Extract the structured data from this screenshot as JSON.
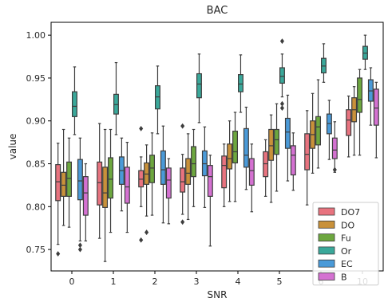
{
  "chart_data": {
    "type": "box",
    "title": "BAC",
    "xlabel": "SNR",
    "ylabel": "value",
    "ylim": [
      0.725,
      1.015
    ],
    "yticks": [
      "0.75",
      "0.80",
      "0.85",
      "0.90",
      "0.95",
      "1.00"
    ],
    "grid": false,
    "legend_position": "lower-right",
    "categories": [
      "0",
      "1",
      "2",
      "3",
      "4",
      "5",
      "6",
      "10"
    ],
    "series": [
      {
        "name": "DO7",
        "color": "#e8737f",
        "boxes": [
          {
            "q1": 0.807,
            "median": 0.829,
            "q3": 0.849,
            "whisker_low": 0.756,
            "whisker_high": 0.874,
            "outliers": [
              0.745
            ]
          },
          {
            "q1": 0.802,
            "median": 0.828,
            "q3": 0.852,
            "whisker_low": 0.763,
            "whisker_high": 0.897,
            "outliers": []
          },
          {
            "q1": 0.823,
            "median": 0.832,
            "q3": 0.842,
            "whisker_low": 0.8,
            "whisker_high": 0.858,
            "outliers": [
              0.891,
              0.761
            ]
          },
          {
            "q1": 0.817,
            "median": 0.829,
            "q3": 0.845,
            "whisker_low": 0.791,
            "whisker_high": 0.861,
            "outliers": [
              0.894,
              0.782
            ]
          },
          {
            "q1": 0.822,
            "median": 0.848,
            "q3": 0.859,
            "whisker_low": 0.8,
            "whisker_high": 0.873,
            "outliers": []
          },
          {
            "q1": 0.835,
            "median": 0.85,
            "q3": 0.864,
            "whisker_low": 0.812,
            "whisker_high": 0.878,
            "outliers": []
          },
          {
            "q1": 0.843,
            "median": 0.861,
            "q3": 0.885,
            "whisker_low": 0.802,
            "whisker_high": 0.912,
            "outliers": []
          },
          {
            "q1": 0.883,
            "median": 0.901,
            "q3": 0.913,
            "whisker_low": 0.858,
            "whisker_high": 0.929,
            "outliers": []
          }
        ]
      },
      {
        "name": "DO",
        "color": "#c9913a",
        "boxes": [
          {
            "q1": 0.812,
            "median": 0.825,
            "q3": 0.84,
            "whisker_low": 0.778,
            "whisker_high": 0.89,
            "outliers": []
          },
          {
            "q1": 0.799,
            "median": 0.816,
            "q3": 0.846,
            "whisker_low": 0.736,
            "whisker_high": 0.89,
            "outliers": []
          },
          {
            "q1": 0.826,
            "median": 0.838,
            "q3": 0.851,
            "whisker_low": 0.789,
            "whisker_high": 0.872,
            "outliers": [
              0.77
            ]
          },
          {
            "q1": 0.826,
            "median": 0.839,
            "q3": 0.856,
            "whisker_low": 0.785,
            "whisker_high": 0.885,
            "outliers": []
          },
          {
            "q1": 0.844,
            "median": 0.856,
            "q3": 0.873,
            "whisker_low": 0.806,
            "whisker_high": 0.9,
            "outliers": []
          },
          {
            "q1": 0.854,
            "median": 0.871,
            "q3": 0.89,
            "whisker_low": 0.805,
            "whisker_high": 0.907,
            "outliers": []
          },
          {
            "q1": 0.868,
            "median": 0.884,
            "q3": 0.9,
            "whisker_low": 0.839,
            "whisker_high": 0.932,
            "outliers": []
          },
          {
            "q1": 0.899,
            "median": 0.913,
            "q3": 0.927,
            "whisker_low": 0.86,
            "whisker_high": 0.94,
            "outliers": []
          }
        ]
      },
      {
        "name": "Fu",
        "color": "#6da73f",
        "boxes": [
          {
            "q1": 0.812,
            "median": 0.833,
            "q3": 0.852,
            "whisker_low": 0.776,
            "whisker_high": 0.88,
            "outliers": []
          },
          {
            "q1": 0.81,
            "median": 0.832,
            "q3": 0.857,
            "whisker_low": 0.77,
            "whisker_high": 0.89,
            "outliers": []
          },
          {
            "q1": 0.828,
            "median": 0.845,
            "q3": 0.86,
            "whisker_low": 0.79,
            "whisker_high": 0.886,
            "outliers": []
          },
          {
            "q1": 0.835,
            "median": 0.85,
            "q3": 0.87,
            "whisker_low": 0.8,
            "whisker_high": 0.89,
            "outliers": []
          },
          {
            "q1": 0.851,
            "median": 0.864,
            "q3": 0.888,
            "whisker_low": 0.806,
            "whisker_high": 0.91,
            "outliers": []
          },
          {
            "q1": 0.861,
            "median": 0.878,
            "q3": 0.89,
            "whisker_low": 0.818,
            "whisker_high": 0.92,
            "outliers": []
          },
          {
            "q1": 0.872,
            "median": 0.893,
            "q3": 0.905,
            "whisker_low": 0.845,
            "whisker_high": 0.948,
            "outliers": []
          },
          {
            "q1": 0.91,
            "median": 0.925,
            "q3": 0.95,
            "whisker_low": 0.86,
            "whisker_high": 0.96,
            "outliers": []
          }
        ]
      },
      {
        "name": "Or",
        "color": "#3aa89a",
        "boxes": [
          {
            "q1": 0.905,
            "median": 0.917,
            "q3": 0.934,
            "whisker_low": 0.884,
            "whisker_high": 0.963,
            "outliers": []
          },
          {
            "q1": 0.908,
            "median": 0.919,
            "q3": 0.931,
            "whisker_low": 0.884,
            "whisker_high": 0.968,
            "outliers": []
          },
          {
            "q1": 0.914,
            "median": 0.928,
            "q3": 0.941,
            "whisker_low": 0.885,
            "whisker_high": 0.964,
            "outliers": []
          },
          {
            "q1": 0.927,
            "median": 0.943,
            "q3": 0.955,
            "whisker_low": 0.898,
            "whisker_high": 0.978,
            "outliers": []
          },
          {
            "q1": 0.934,
            "median": 0.943,
            "q3": 0.954,
            "whisker_low": 0.91,
            "whisker_high": 0.977,
            "outliers": []
          },
          {
            "q1": 0.944,
            "median": 0.952,
            "q3": 0.962,
            "whisker_low": 0.928,
            "whisker_high": 0.978,
            "outliers": [
              0.993,
              0.92,
              0.915
            ]
          },
          {
            "q1": 0.956,
            "median": 0.964,
            "q3": 0.973,
            "whisker_low": 0.945,
            "whisker_high": 0.99,
            "outliers": []
          },
          {
            "q1": 0.972,
            "median": 0.979,
            "q3": 0.987,
            "whisker_low": 0.96,
            "whisker_high": 1.0,
            "outliers": []
          }
        ]
      },
      {
        "name": "EC",
        "color": "#4a9ad8",
        "boxes": [
          {
            "q1": 0.808,
            "median": 0.83,
            "q3": 0.855,
            "whisker_low": 0.76,
            "whisker_high": 0.88,
            "outliers": [
              0.755,
              0.75
            ]
          },
          {
            "q1": 0.826,
            "median": 0.842,
            "q3": 0.858,
            "whisker_low": 0.795,
            "whisker_high": 0.88,
            "outliers": []
          },
          {
            "q1": 0.826,
            "median": 0.843,
            "q3": 0.865,
            "whisker_low": 0.781,
            "whisker_high": 0.894,
            "outliers": []
          },
          {
            "q1": 0.836,
            "median": 0.85,
            "q3": 0.865,
            "whisker_low": 0.799,
            "whisker_high": 0.893,
            "outliers": []
          },
          {
            "q1": 0.846,
            "median": 0.86,
            "q3": 0.891,
            "whisker_low": 0.82,
            "whisker_high": 0.916,
            "outliers": []
          },
          {
            "q1": 0.868,
            "median": 0.887,
            "q3": 0.903,
            "whisker_low": 0.83,
            "whisker_high": 0.93,
            "outliers": []
          },
          {
            "q1": 0.885,
            "median": 0.897,
            "q3": 0.908,
            "whisker_low": 0.855,
            "whisker_high": 0.924,
            "outliers": []
          },
          {
            "q1": 0.923,
            "median": 0.935,
            "q3": 0.948,
            "whisker_low": 0.895,
            "whisker_high": 0.962,
            "outliers": []
          }
        ]
      },
      {
        "name": "B",
        "color": "#d471d1",
        "boxes": [
          {
            "q1": 0.79,
            "median": 0.816,
            "q3": 0.835,
            "whisker_low": 0.76,
            "whisker_high": 0.85,
            "outliers": []
          },
          {
            "q1": 0.804,
            "median": 0.823,
            "q3": 0.846,
            "whisker_low": 0.77,
            "whisker_high": 0.875,
            "outliers": []
          },
          {
            "q1": 0.81,
            "median": 0.831,
            "q3": 0.845,
            "whisker_low": 0.78,
            "whisker_high": 0.856,
            "outliers": []
          },
          {
            "q1": 0.812,
            "median": 0.835,
            "q3": 0.848,
            "whisker_low": 0.754,
            "whisker_high": 0.86,
            "outliers": []
          },
          {
            "q1": 0.825,
            "median": 0.842,
            "q3": 0.856,
            "whisker_low": 0.794,
            "whisker_high": 0.873,
            "outliers": []
          },
          {
            "q1": 0.837,
            "median": 0.86,
            "q3": 0.871,
            "whisker_low": 0.819,
            "whisker_high": 0.886,
            "outliers": []
          },
          {
            "q1": 0.856,
            "median": 0.866,
            "q3": 0.88,
            "whisker_low": 0.84,
            "whisker_high": 0.899,
            "outliers": [
              0.843
            ]
          },
          {
            "q1": 0.895,
            "median": 0.915,
            "q3": 0.937,
            "whisker_low": 0.857,
            "whisker_high": 0.945,
            "outliers": []
          }
        ]
      }
    ]
  }
}
